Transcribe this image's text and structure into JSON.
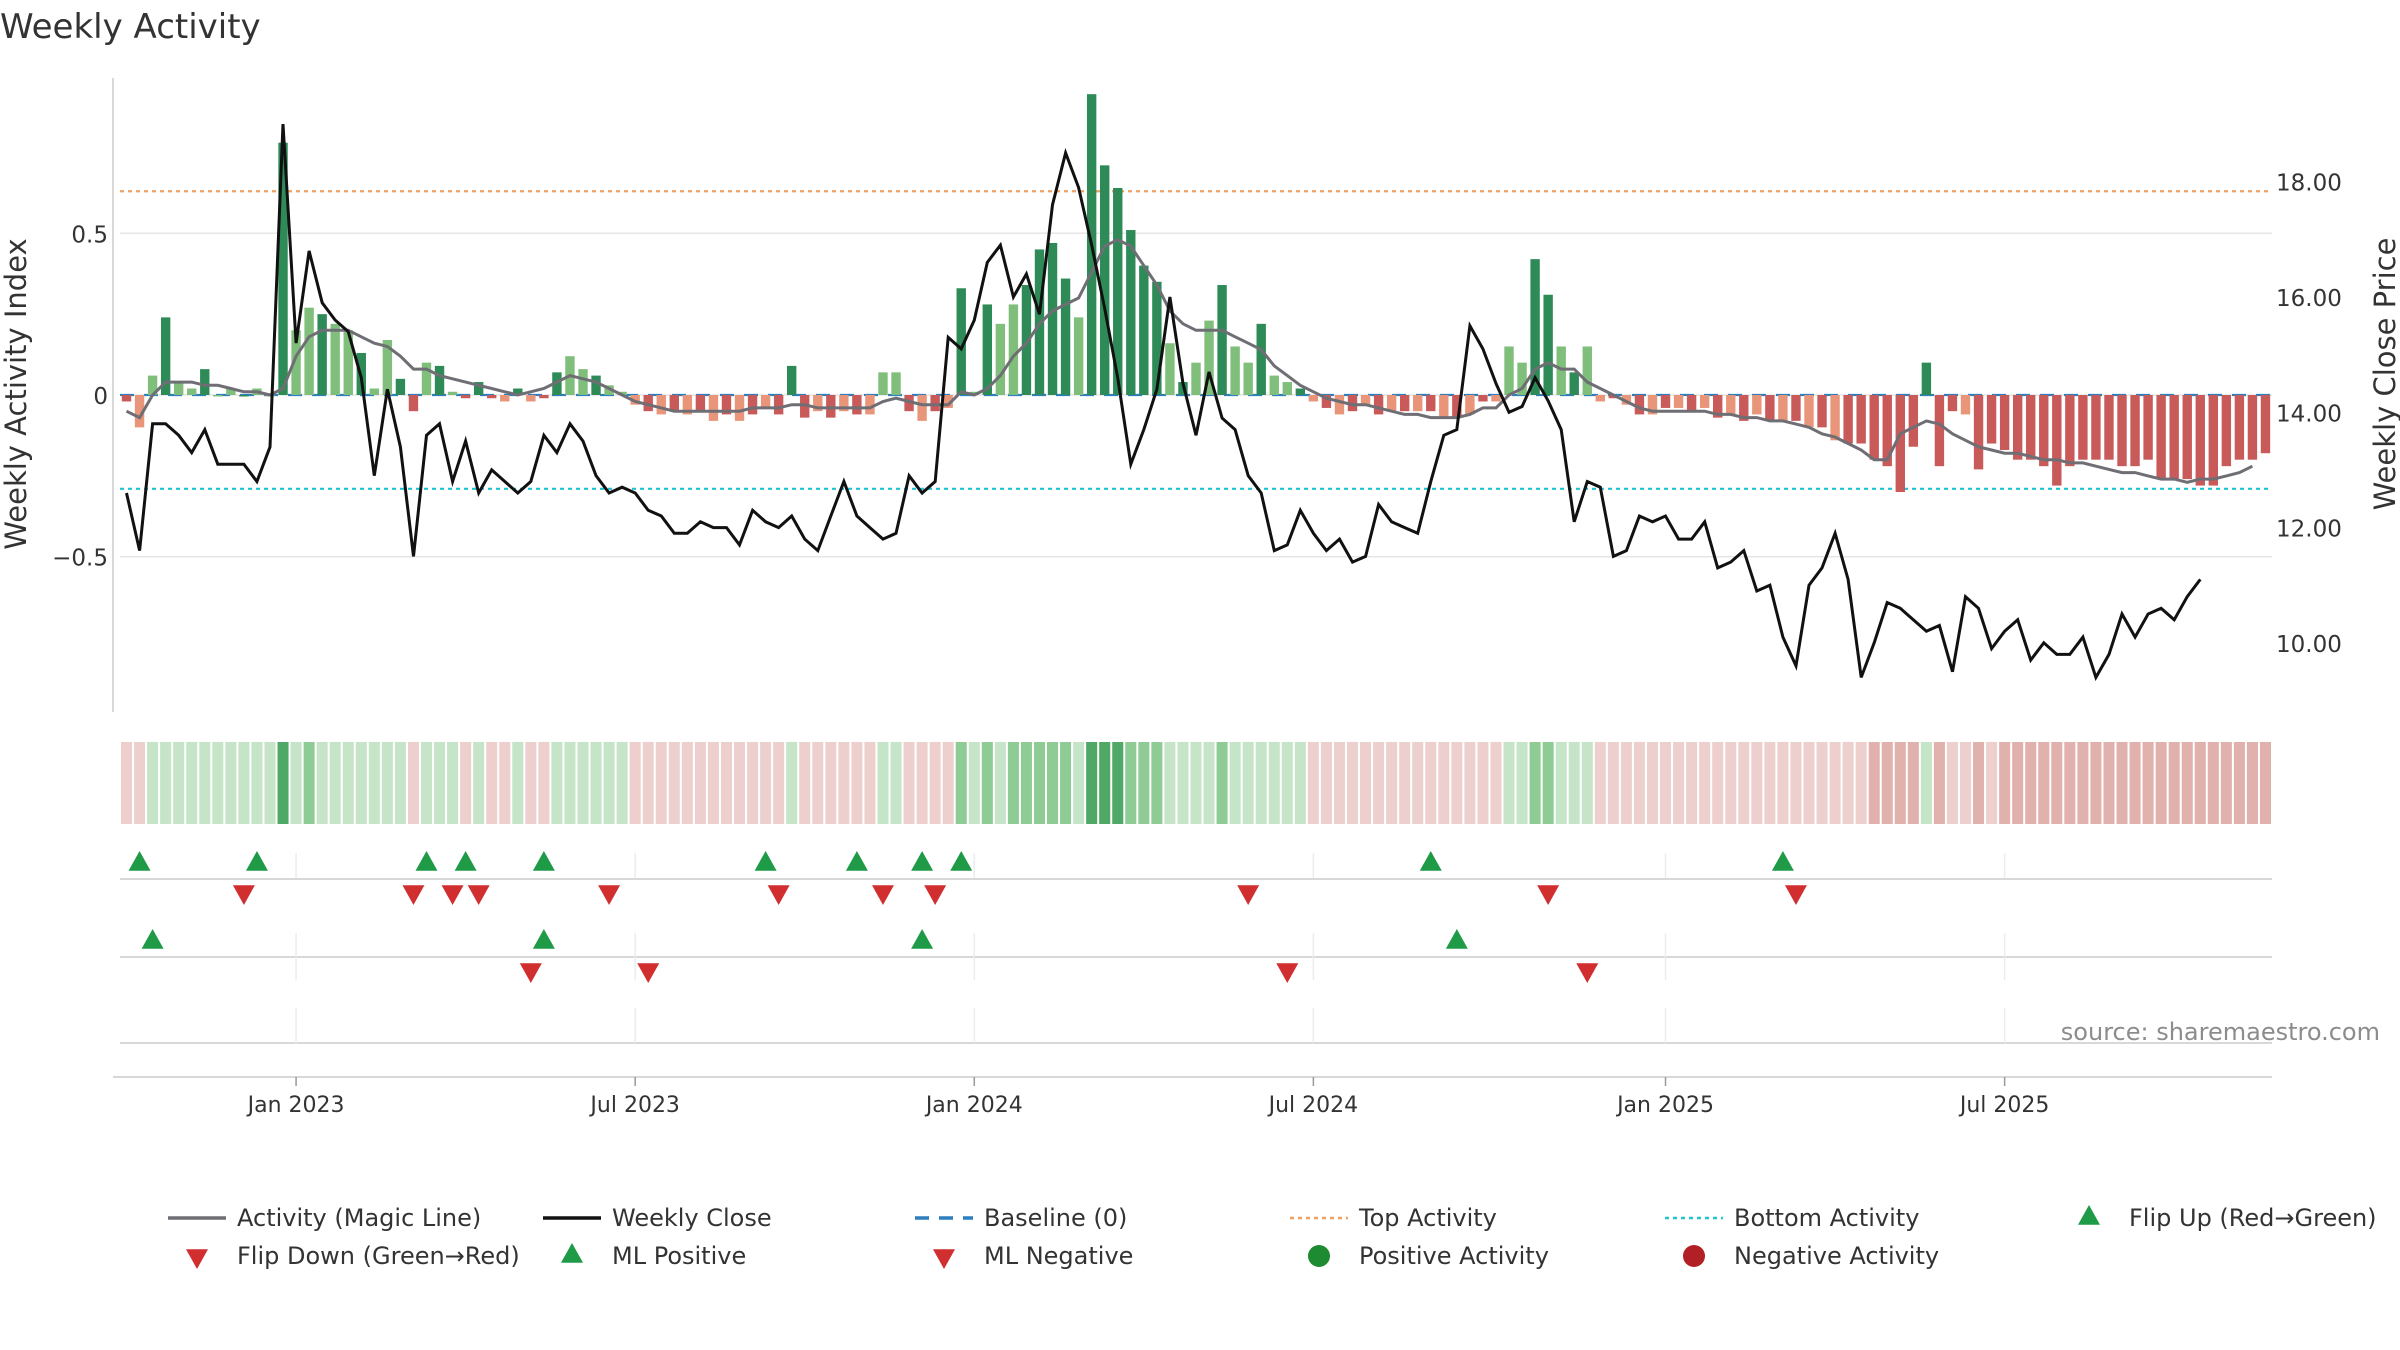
{
  "title": "Weekly Activity",
  "source": "source: sharemaestro.com",
  "chart_data": {
    "type": "bar+line",
    "title": "Weekly Activity",
    "ylabel_left": "Weekly Activity Index",
    "ylabel_right": "Weekly Close Price",
    "ylim_left": [
      -0.98,
      0.98
    ],
    "ylim_right": [
      8.8,
      19.8
    ],
    "yticks_left": [
      0.5,
      0,
      -0.5
    ],
    "yticks_left_labels": [
      "0.5",
      "0",
      "−0.5"
    ],
    "yticks_right": [
      18,
      16,
      14,
      12,
      10
    ],
    "yticks_right_labels": [
      "18.00",
      "16.00",
      "14.00",
      "12.00",
      "10.00"
    ],
    "x_start": "2022-10-03",
    "x_tick_labels": [
      {
        "label": "Jan 2023",
        "week": 13
      },
      {
        "label": "Jul 2023",
        "week": 39
      },
      {
        "label": "Jan 2024",
        "week": 65
      },
      {
        "label": "Jul 2024",
        "week": 91
      },
      {
        "label": "Jan 2025",
        "week": 118
      },
      {
        "label": "Jul 2025",
        "week": 144
      }
    ],
    "top_activity": 0.63,
    "bottom_activity": -0.29,
    "baseline": 0,
    "activity": [
      -0.02,
      -0.1,
      0.06,
      0.24,
      0.04,
      0.02,
      0.08,
      0.0,
      0.02,
      0.0,
      0.02,
      0.0,
      0.78,
      0.2,
      0.27,
      0.25,
      0.22,
      0.2,
      0.13,
      0.02,
      0.17,
      0.05,
      -0.05,
      0.1,
      0.09,
      0.01,
      -0.01,
      0.04,
      -0.01,
      -0.02,
      0.02,
      -0.02,
      -0.01,
      0.07,
      0.12,
      0.08,
      0.06,
      0.03,
      0.01,
      -0.03,
      -0.05,
      -0.06,
      -0.05,
      -0.06,
      -0.05,
      -0.08,
      -0.06,
      -0.08,
      -0.06,
      -0.04,
      -0.06,
      0.09,
      -0.07,
      -0.05,
      -0.07,
      -0.05,
      -0.06,
      -0.06,
      0.07,
      0.07,
      -0.05,
      -0.08,
      -0.05,
      -0.04,
      0.33,
      0.01,
      0.28,
      0.22,
      0.28,
      0.34,
      0.45,
      0.47,
      0.36,
      0.24,
      0.93,
      0.71,
      0.64,
      0.51,
      0.4,
      0.35,
      0.16,
      0.04,
      0.1,
      0.23,
      0.34,
      0.15,
      0.1,
      0.22,
      0.06,
      0.04,
      0.02,
      -0.02,
      -0.04,
      -0.06,
      -0.05,
      -0.03,
      -0.06,
      -0.05,
      -0.05,
      -0.05,
      -0.05,
      -0.07,
      -0.07,
      -0.06,
      -0.02,
      -0.02,
      0.15,
      0.1,
      0.42,
      0.31,
      0.15,
      0.07,
      0.15,
      -0.02,
      -0.01,
      -0.03,
      -0.06,
      -0.06,
      -0.04,
      -0.04,
      -0.05,
      -0.04,
      -0.07,
      -0.06,
      -0.08,
      -0.06,
      -0.08,
      -0.08,
      -0.08,
      -0.1,
      -0.1,
      -0.14,
      -0.15,
      -0.15,
      -0.2,
      -0.22,
      -0.3,
      -0.16,
      0.1,
      -0.22,
      -0.05,
      -0.06,
      -0.23,
      -0.15,
      -0.17,
      -0.2,
      -0.2,
      -0.22,
      -0.28,
      -0.22,
      -0.2,
      -0.2,
      -0.2,
      -0.22,
      -0.22,
      -0.2,
      -0.26,
      -0.26,
      -0.26,
      -0.28,
      -0.28,
      -0.22,
      -0.2,
      -0.2,
      -0.18
    ],
    "magic_line": [
      -0.05,
      -0.07,
      0.0,
      0.04,
      0.04,
      0.04,
      0.03,
      0.03,
      0.02,
      0.01,
      0.01,
      0.0,
      0.02,
      0.12,
      0.18,
      0.2,
      0.2,
      0.2,
      0.18,
      0.16,
      0.15,
      0.12,
      0.08,
      0.08,
      0.06,
      0.05,
      0.04,
      0.03,
      0.02,
      0.01,
      0.0,
      0.01,
      0.02,
      0.04,
      0.06,
      0.05,
      0.04,
      0.02,
      0.0,
      -0.02,
      -0.03,
      -0.04,
      -0.05,
      -0.05,
      -0.05,
      -0.05,
      -0.05,
      -0.05,
      -0.04,
      -0.04,
      -0.04,
      -0.03,
      -0.03,
      -0.04,
      -0.04,
      -0.04,
      -0.04,
      -0.04,
      -0.02,
      -0.01,
      -0.02,
      -0.03,
      -0.03,
      -0.03,
      0.01,
      0.0,
      0.02,
      0.06,
      0.12,
      0.16,
      0.22,
      0.26,
      0.28,
      0.3,
      0.38,
      0.46,
      0.48,
      0.46,
      0.4,
      0.34,
      0.26,
      0.22,
      0.2,
      0.2,
      0.2,
      0.18,
      0.16,
      0.14,
      0.09,
      0.06,
      0.03,
      0.01,
      -0.01,
      -0.02,
      -0.03,
      -0.03,
      -0.04,
      -0.05,
      -0.06,
      -0.06,
      -0.07,
      -0.07,
      -0.07,
      -0.06,
      -0.04,
      -0.04,
      0.0,
      0.02,
      0.08,
      0.1,
      0.08,
      0.08,
      0.04,
      0.02,
      0.0,
      -0.02,
      -0.04,
      -0.05,
      -0.05,
      -0.05,
      -0.05,
      -0.05,
      -0.06,
      -0.06,
      -0.07,
      -0.07,
      -0.08,
      -0.08,
      -0.09,
      -0.1,
      -0.12,
      -0.13,
      -0.15,
      -0.17,
      -0.2,
      -0.2,
      -0.12,
      -0.1,
      -0.08,
      -0.09,
      -0.12,
      -0.14,
      -0.16,
      -0.17,
      -0.18,
      -0.18,
      -0.19,
      -0.2,
      -0.2,
      -0.21,
      -0.21,
      -0.22,
      -0.23,
      -0.24,
      -0.24,
      -0.25,
      -0.26,
      -0.26,
      -0.27,
      -0.26,
      -0.26,
      -0.25,
      -0.24,
      -0.22
    ],
    "weekly_close": [
      12.6,
      11.6,
      13.8,
      13.8,
      13.6,
      13.3,
      13.7,
      13.1,
      13.1,
      13.1,
      12.8,
      13.4,
      19.0,
      15.2,
      16.8,
      15.9,
      15.6,
      15.4,
      14.6,
      12.9,
      14.4,
      13.4,
      11.5,
      13.6,
      13.8,
      12.8,
      13.5,
      12.6,
      13.0,
      12.8,
      12.6,
      12.8,
      13.6,
      13.3,
      13.8,
      13.5,
      12.9,
      12.6,
      12.7,
      12.6,
      12.3,
      12.2,
      11.9,
      11.9,
      12.1,
      12.0,
      12.0,
      11.7,
      12.3,
      12.1,
      12.0,
      12.2,
      11.8,
      11.6,
      12.2,
      12.8,
      12.2,
      12.0,
      11.8,
      11.9,
      12.9,
      12.6,
      12.8,
      15.3,
      15.1,
      15.6,
      16.6,
      16.9,
      16.0,
      16.4,
      15.7,
      17.6,
      18.5,
      17.9,
      16.9,
      15.8,
      14.6,
      13.1,
      13.7,
      14.4,
      16.0,
      14.5,
      13.6,
      14.7,
      13.9,
      13.7,
      12.9,
      12.6,
      11.6,
      11.7,
      12.3,
      11.9,
      11.6,
      11.8,
      11.4,
      11.5,
      12.4,
      12.1,
      12.0,
      11.9,
      12.8,
      13.6,
      13.7,
      15.5,
      15.1,
      14.5,
      14.0,
      14.1,
      14.6,
      14.2,
      13.7,
      12.1,
      12.8,
      12.7,
      11.5,
      11.6,
      12.2,
      12.1,
      12.2,
      11.8,
      11.8,
      12.1,
      11.3,
      11.4,
      11.6,
      10.9,
      11.0,
      10.1,
      9.6,
      11.0,
      11.3,
      11.9,
      11.1,
      9.4,
      10.0,
      10.7,
      10.6,
      10.4,
      10.2,
      10.3,
      9.5,
      10.8,
      10.6,
      9.9,
      10.2,
      10.4,
      9.7,
      10.0,
      9.8,
      9.8,
      10.1,
      9.4,
      9.8,
      10.5,
      10.1,
      10.5,
      10.6,
      10.4,
      10.8,
      11.1
    ],
    "markers": {
      "flip_up": [
        1,
        10,
        23,
        26,
        32,
        49,
        56,
        61,
        64,
        100,
        127
      ],
      "flip_down": [
        9,
        22,
        25,
        27,
        37,
        50,
        58,
        62,
        86,
        109,
        128
      ],
      "ml_positive": [
        2,
        32,
        61,
        102
      ],
      "ml_negative": [
        31,
        40,
        89,
        112
      ]
    },
    "legend": [
      {
        "label": "Activity (Magic Line)",
        "kind": "line",
        "color": "#6e6e74"
      },
      {
        "label": "Weekly Close",
        "kind": "line",
        "color": "#111111"
      },
      {
        "label": "Baseline (0)",
        "kind": "dash",
        "color": "#2d7fc0"
      },
      {
        "label": "Top Activity",
        "kind": "dot",
        "color": "#f0a060"
      },
      {
        "label": "Bottom Activity",
        "kind": "dot",
        "color": "#1fc3d4"
      },
      {
        "label": "Flip Up (Red→Green)",
        "kind": "tri-up",
        "color": "#1f9b48"
      },
      {
        "label": "Flip Down (Green→Red)",
        "kind": "tri-down",
        "color": "#d12f2f"
      },
      {
        "label": "ML Positive",
        "kind": "tri-up",
        "color": "#1f9b48"
      },
      {
        "label": "ML Negative",
        "kind": "tri-down",
        "color": "#d12f2f"
      },
      {
        "label": "Positive Activity",
        "kind": "circle",
        "color": "#1e8a32"
      },
      {
        "label": "Negative Activity",
        "kind": "circle",
        "color": "#b02024"
      }
    ],
    "colors": {
      "pos_strong": "#2e8b57",
      "pos_light": "#7fbf7b",
      "neg_strong": "#c85a5a",
      "neg_light": "#e8957a",
      "magic_line": "#6e6e74",
      "close": "#111111",
      "baseline": "#2d7fc0",
      "top": "#f0a060",
      "bottom": "#1fc3d4",
      "up_marker": "#1f9b48",
      "down_marker": "#d12f2f",
      "grid": "#e6e6e6",
      "axis": "#cccccc"
    }
  }
}
